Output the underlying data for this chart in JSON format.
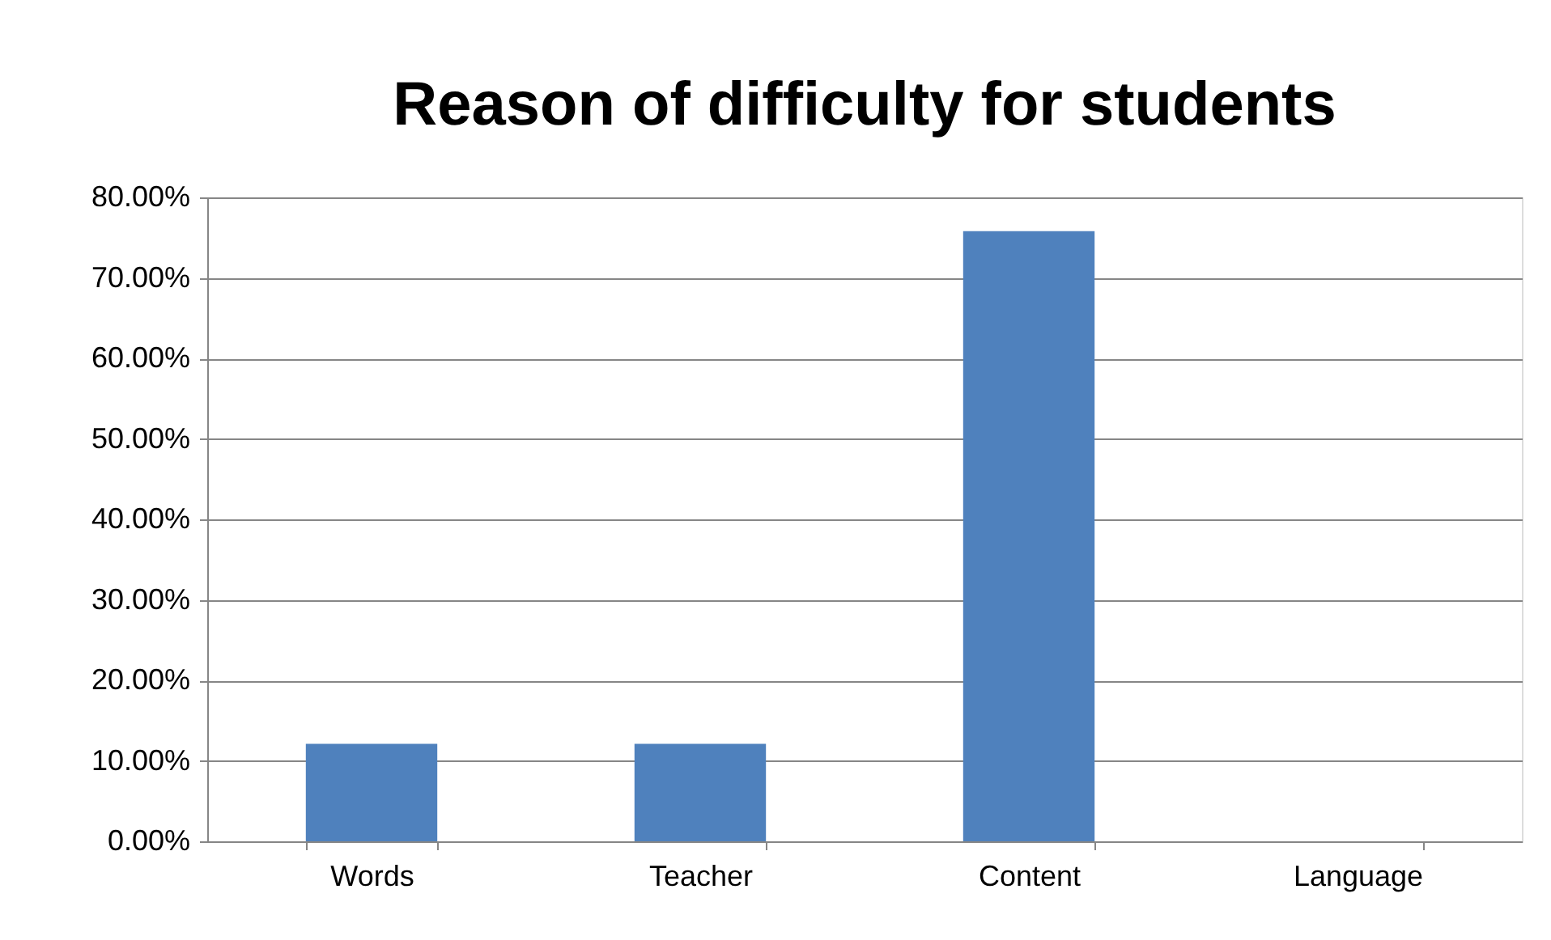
{
  "chart_data": {
    "type": "bar",
    "title": "Reason of difficulty for students",
    "categories": [
      "Words",
      "Teacher",
      "Content",
      "Language"
    ],
    "values": [
      12.1,
      12.1,
      75.8,
      0
    ],
    "color": "#4f81bd",
    "ylim": [
      0,
      80
    ],
    "yticks": [
      {
        "value": 0,
        "label": "0.00%"
      },
      {
        "value": 10,
        "label": "10.00%"
      },
      {
        "value": 20,
        "label": "20.00%"
      },
      {
        "value": 30,
        "label": "30.00%"
      },
      {
        "value": 40,
        "label": "40.00%"
      },
      {
        "value": 50,
        "label": "50.00%"
      },
      {
        "value": 60,
        "label": "60.00%"
      },
      {
        "value": 70,
        "label": "70.00%"
      },
      {
        "value": 80,
        "label": "80.00%"
      }
    ],
    "grid": "y",
    "legend": false
  }
}
